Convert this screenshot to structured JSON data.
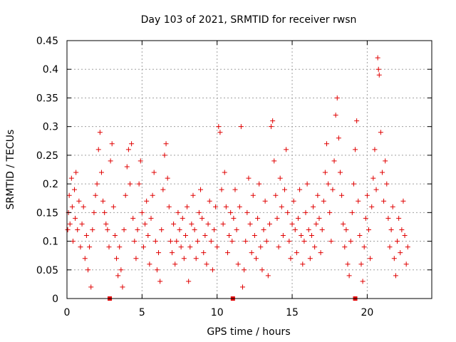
{
  "chart_data": {
    "type": "scatter",
    "title": "Day 103 of 2021, SRMTID for receiver rwsn",
    "xlabel": "GPS time / hours",
    "ylabel": "SRMTID / TECUs",
    "xlim": [
      0,
      24.3
    ],
    "ylim": [
      0,
      0.45
    ],
    "xticks": [
      0,
      5,
      10,
      15,
      20
    ],
    "yticks": [
      0,
      0.05,
      0.1,
      0.15,
      0.2,
      0.25,
      0.3,
      0.35,
      0.4,
      0.45
    ],
    "xtick_labels": [
      "0",
      "5",
      "10",
      "15",
      "20"
    ],
    "ytick_labels": [
      "0",
      "0.05",
      "0.1",
      "0.15",
      "0.2",
      "0.25",
      "0.3",
      "0.35",
      "0.4",
      "0.45"
    ],
    "grid": true,
    "marker": "plus",
    "series_color": "#e00000",
    "data_gap_markers_x": [
      2.85,
      11.05,
      19.2
    ],
    "points": [
      [
        0.05,
        0.12
      ],
      [
        0.1,
        0.15
      ],
      [
        0.15,
        0.18
      ],
      [
        0.2,
        0.13
      ],
      [
        0.3,
        0.21
      ],
      [
        0.35,
        0.16
      ],
      [
        0.4,
        0.1
      ],
      [
        0.5,
        0.19
      ],
      [
        0.55,
        0.14
      ],
      [
        0.6,
        0.22
      ],
      [
        0.7,
        0.12
      ],
      [
        0.8,
        0.17
      ],
      [
        0.9,
        0.09
      ],
      [
        1.0,
        0.13
      ],
      [
        1.1,
        0.16
      ],
      [
        1.2,
        0.07
      ],
      [
        1.3,
        0.11
      ],
      [
        1.4,
        0.05
      ],
      [
        1.5,
        0.09
      ],
      [
        1.6,
        0.02
      ],
      [
        1.7,
        0.12
      ],
      [
        1.8,
        0.15
      ],
      [
        1.9,
        0.18
      ],
      [
        2.0,
        0.2
      ],
      [
        2.1,
        0.26
      ],
      [
        2.2,
        0.29
      ],
      [
        2.3,
        0.22
      ],
      [
        2.4,
        0.17
      ],
      [
        2.5,
        0.15
      ],
      [
        2.6,
        0.13
      ],
      [
        2.7,
        0.12
      ],
      [
        2.8,
        0.09
      ],
      [
        2.9,
        0.24
      ],
      [
        3.0,
        0.27
      ],
      [
        3.1,
        0.16
      ],
      [
        3.2,
        0.11
      ],
      [
        3.3,
        0.07
      ],
      [
        3.4,
        0.04
      ],
      [
        3.5,
        0.09
      ],
      [
        3.6,
        0.05
      ],
      [
        3.7,
        0.02
      ],
      [
        3.8,
        0.12
      ],
      [
        3.9,
        0.18
      ],
      [
        4.0,
        0.23
      ],
      [
        4.1,
        0.26
      ],
      [
        4.2,
        0.2
      ],
      [
        4.3,
        0.27
      ],
      [
        4.4,
        0.14
      ],
      [
        4.5,
        0.1
      ],
      [
        4.6,
        0.07
      ],
      [
        4.7,
        0.12
      ],
      [
        4.8,
        0.2
      ],
      [
        4.9,
        0.24
      ],
      [
        5.0,
        0.15
      ],
      [
        5.1,
        0.09
      ],
      [
        5.2,
        0.13
      ],
      [
        5.3,
        0.17
      ],
      [
        5.4,
        0.11
      ],
      [
        5.5,
        0.06
      ],
      [
        5.6,
        0.14
      ],
      [
        5.7,
        0.18
      ],
      [
        5.8,
        0.22
      ],
      [
        5.9,
        0.1
      ],
      [
        6.0,
        0.05
      ],
      [
        6.1,
        0.08
      ],
      [
        6.2,
        0.03
      ],
      [
        6.3,
        0.12
      ],
      [
        6.4,
        0.19
      ],
      [
        6.5,
        0.25
      ],
      [
        6.6,
        0.27
      ],
      [
        6.7,
        0.21
      ],
      [
        6.8,
        0.16
      ],
      [
        6.9,
        0.1
      ],
      [
        7.0,
        0.08
      ],
      [
        7.1,
        0.13
      ],
      [
        7.2,
        0.06
      ],
      [
        7.3,
        0.1
      ],
      [
        7.4,
        0.15
      ],
      [
        7.5,
        0.12
      ],
      [
        7.6,
        0.09
      ],
      [
        7.7,
        0.14
      ],
      [
        7.8,
        0.07
      ],
      [
        7.9,
        0.11
      ],
      [
        8.0,
        0.16
      ],
      [
        8.1,
        0.03
      ],
      [
        8.2,
        0.09
      ],
      [
        8.3,
        0.13
      ],
      [
        8.4,
        0.18
      ],
      [
        8.5,
        0.12
      ],
      [
        8.6,
        0.07
      ],
      [
        8.7,
        0.1
      ],
      [
        8.8,
        0.15
      ],
      [
        8.9,
        0.19
      ],
      [
        9.0,
        0.14
      ],
      [
        9.1,
        0.08
      ],
      [
        9.2,
        0.11
      ],
      [
        9.3,
        0.06
      ],
      [
        9.4,
        0.13
      ],
      [
        9.5,
        0.17
      ],
      [
        9.6,
        0.1
      ],
      [
        9.7,
        0.05
      ],
      [
        9.8,
        0.12
      ],
      [
        9.9,
        0.16
      ],
      [
        10.0,
        0.09
      ],
      [
        10.1,
        0.3
      ],
      [
        10.2,
        0.29
      ],
      [
        10.3,
        0.19
      ],
      [
        10.4,
        0.13
      ],
      [
        10.5,
        0.22
      ],
      [
        10.6,
        0.16
      ],
      [
        10.7,
        0.08
      ],
      [
        10.8,
        0.11
      ],
      [
        10.9,
        0.15
      ],
      [
        11.0,
        0.1
      ],
      [
        11.1,
        0.14
      ],
      [
        11.2,
        0.19
      ],
      [
        11.3,
        0.12
      ],
      [
        11.4,
        0.06
      ],
      [
        11.5,
        0.16
      ],
      [
        11.6,
        0.3
      ],
      [
        11.7,
        0.02
      ],
      [
        11.8,
        0.05
      ],
      [
        11.9,
        0.1
      ],
      [
        12.0,
        0.15
      ],
      [
        12.1,
        0.21
      ],
      [
        12.2,
        0.13
      ],
      [
        12.3,
        0.08
      ],
      [
        12.4,
        0.18
      ],
      [
        12.5,
        0.11
      ],
      [
        12.6,
        0.07
      ],
      [
        12.7,
        0.14
      ],
      [
        12.8,
        0.2
      ],
      [
        12.9,
        0.09
      ],
      [
        13.0,
        0.05
      ],
      [
        13.1,
        0.12
      ],
      [
        13.2,
        0.17
      ],
      [
        13.3,
        0.1
      ],
      [
        13.4,
        0.04
      ],
      [
        13.5,
        0.13
      ],
      [
        13.6,
        0.3
      ],
      [
        13.7,
        0.31
      ],
      [
        13.8,
        0.24
      ],
      [
        13.9,
        0.18
      ],
      [
        14.0,
        0.14
      ],
      [
        14.1,
        0.09
      ],
      [
        14.2,
        0.21
      ],
      [
        14.3,
        0.16
      ],
      [
        14.4,
        0.11
      ],
      [
        14.5,
        0.19
      ],
      [
        14.6,
        0.26
      ],
      [
        14.7,
        0.15
      ],
      [
        14.8,
        0.1
      ],
      [
        14.9,
        0.07
      ],
      [
        15.0,
        0.13
      ],
      [
        15.1,
        0.17
      ],
      [
        15.2,
        0.12
      ],
      [
        15.3,
        0.08
      ],
      [
        15.4,
        0.14
      ],
      [
        15.5,
        0.19
      ],
      [
        15.6,
        0.11
      ],
      [
        15.7,
        0.06
      ],
      [
        15.8,
        0.1
      ],
      [
        15.9,
        0.15
      ],
      [
        16.0,
        0.2
      ],
      [
        16.1,
        0.12
      ],
      [
        16.2,
        0.07
      ],
      [
        16.3,
        0.11
      ],
      [
        16.4,
        0.16
      ],
      [
        16.5,
        0.09
      ],
      [
        16.6,
        0.13
      ],
      [
        16.7,
        0.18
      ],
      [
        16.8,
        0.14
      ],
      [
        16.9,
        0.08
      ],
      [
        17.0,
        0.12
      ],
      [
        17.1,
        0.17
      ],
      [
        17.2,
        0.22
      ],
      [
        17.3,
        0.27
      ],
      [
        17.4,
        0.2
      ],
      [
        17.5,
        0.15
      ],
      [
        17.6,
        0.1
      ],
      [
        17.7,
        0.19
      ],
      [
        17.8,
        0.24
      ],
      [
        17.9,
        0.32
      ],
      [
        18.0,
        0.35
      ],
      [
        18.1,
        0.28
      ],
      [
        18.2,
        0.22
      ],
      [
        18.3,
        0.18
      ],
      [
        18.4,
        0.13
      ],
      [
        18.5,
        0.09
      ],
      [
        18.6,
        0.12
      ],
      [
        18.7,
        0.06
      ],
      [
        18.8,
        0.04
      ],
      [
        18.9,
        0.1
      ],
      [
        19.0,
        0.15
      ],
      [
        19.1,
        0.2
      ],
      [
        19.2,
        0.26
      ],
      [
        19.3,
        0.31
      ],
      [
        19.4,
        0.17
      ],
      [
        19.5,
        0.11
      ],
      [
        19.6,
        0.06
      ],
      [
        19.7,
        0.03
      ],
      [
        19.8,
        0.09
      ],
      [
        19.9,
        0.14
      ],
      [
        20.0,
        0.18
      ],
      [
        20.1,
        0.12
      ],
      [
        20.2,
        0.07
      ],
      [
        20.3,
        0.16
      ],
      [
        20.4,
        0.21
      ],
      [
        20.5,
        0.26
      ],
      [
        20.6,
        0.19
      ],
      [
        20.7,
        0.42
      ],
      [
        20.75,
        0.4
      ],
      [
        20.8,
        0.39
      ],
      [
        20.9,
        0.29
      ],
      [
        21.0,
        0.22
      ],
      [
        21.1,
        0.17
      ],
      [
        21.2,
        0.24
      ],
      [
        21.3,
        0.2
      ],
      [
        21.4,
        0.14
      ],
      [
        21.5,
        0.09
      ],
      [
        21.6,
        0.12
      ],
      [
        21.7,
        0.16
      ],
      [
        21.8,
        0.07
      ],
      [
        21.9,
        0.04
      ],
      [
        22.0,
        0.1
      ],
      [
        22.1,
        0.14
      ],
      [
        22.2,
        0.08
      ],
      [
        22.3,
        0.12
      ],
      [
        22.4,
        0.17
      ],
      [
        22.5,
        0.11
      ],
      [
        22.6,
        0.06
      ],
      [
        22.7,
        0.09
      ]
    ]
  }
}
